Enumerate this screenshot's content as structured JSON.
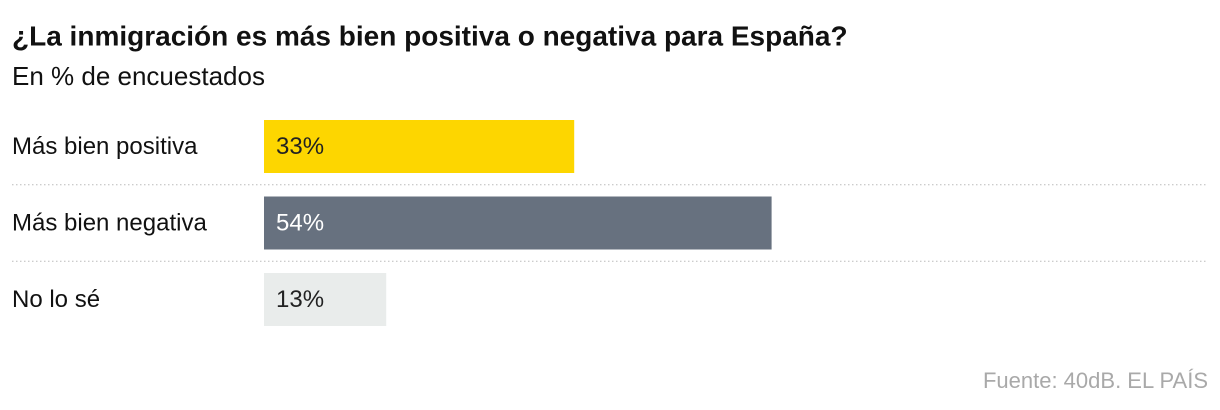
{
  "chart_data": {
    "type": "bar",
    "orientation": "horizontal",
    "title": "¿La inmigración es más bien positiva o negativa para España?",
    "subtitle": "En % de encuestados",
    "categories": [
      "Más bien positiva",
      "Más bien negativa",
      "No lo sé"
    ],
    "values": [
      33,
      54,
      13
    ],
    "value_labels": [
      "33%",
      "54%",
      "13%"
    ],
    "colors": [
      "#fdd600",
      "#67717f",
      "#e9eceb"
    ],
    "xlim": [
      0,
      100
    ],
    "source": "Fuente: 40dB. EL PAÍS"
  }
}
